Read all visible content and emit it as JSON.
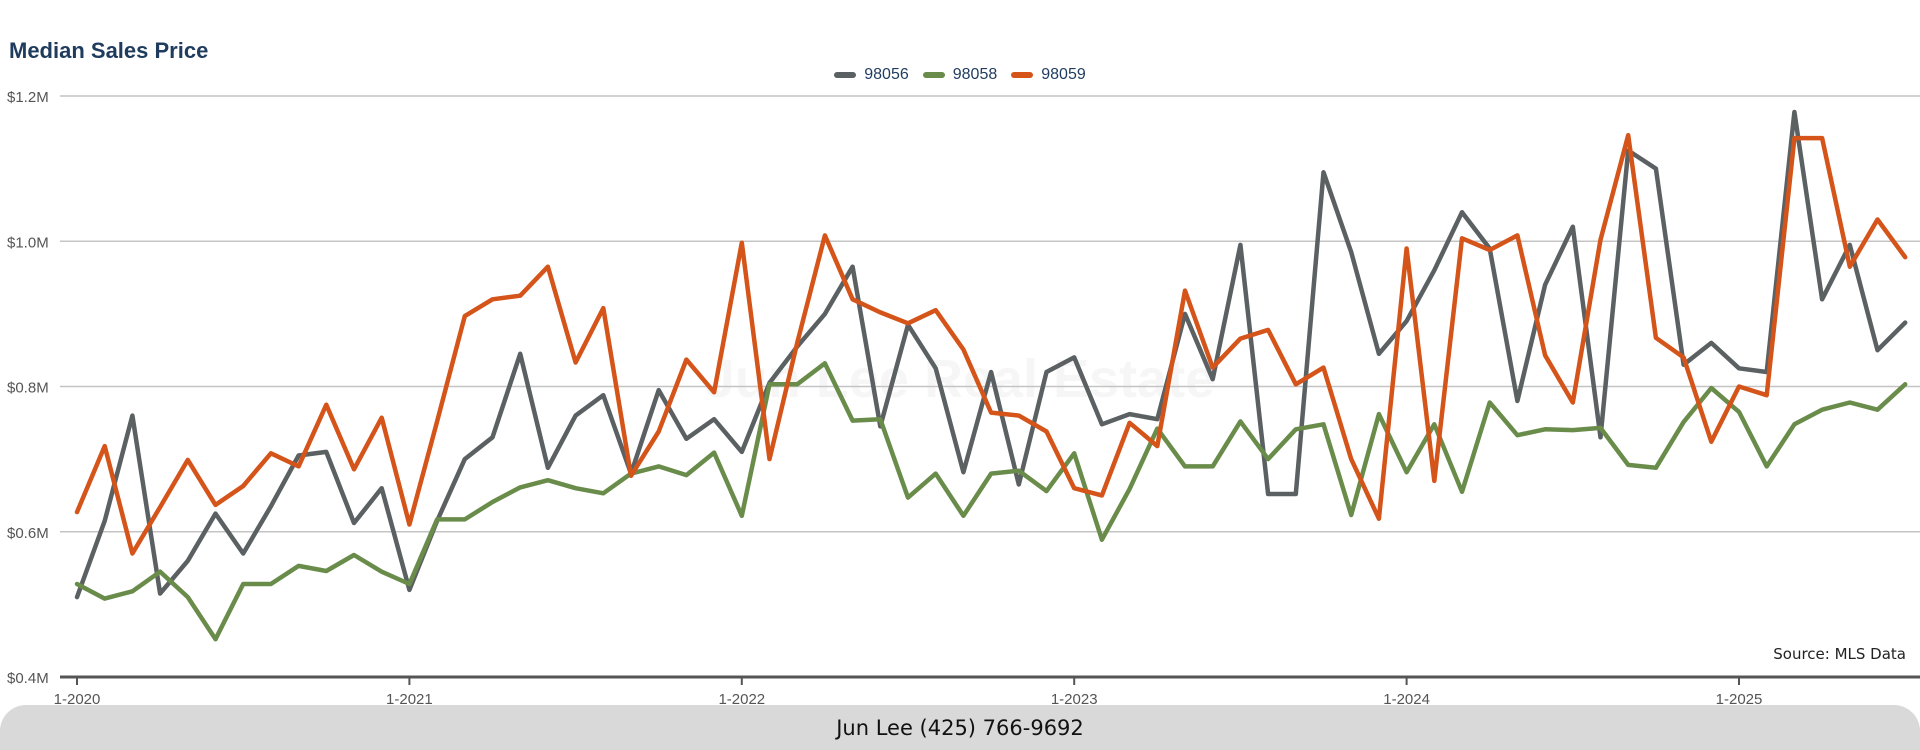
{
  "chart_data": {
    "type": "line",
    "title": "Median Sales Price",
    "xlabel": "",
    "ylabel": "",
    "ylim": [
      400000,
      1200000
    ],
    "yticks": [
      {
        "value": 400000,
        "label": "$0.4M"
      },
      {
        "value": 600000,
        "label": "$0.6M"
      },
      {
        "value": 800000,
        "label": "$0.8M"
      },
      {
        "value": 1000000,
        "label": "$1.0M"
      },
      {
        "value": 1200000,
        "label": "$1.2M"
      }
    ],
    "xticks": [
      "1-2020",
      "1-2021",
      "1-2022",
      "1-2023",
      "1-2024",
      "1-2025"
    ],
    "x_start": "1-2020",
    "x": [
      "1-2020",
      "2-2020",
      "3-2020",
      "4-2020",
      "5-2020",
      "6-2020",
      "7-2020",
      "8-2020",
      "9-2020",
      "10-2020",
      "11-2020",
      "12-2020",
      "1-2021",
      "2-2021",
      "3-2021",
      "4-2021",
      "5-2021",
      "6-2021",
      "7-2021",
      "8-2021",
      "9-2021",
      "10-2021",
      "11-2021",
      "12-2021",
      "1-2022",
      "2-2022",
      "3-2022",
      "4-2022",
      "5-2022",
      "6-2022",
      "7-2022",
      "8-2022",
      "9-2022",
      "10-2022",
      "11-2022",
      "12-2022",
      "1-2023",
      "2-2023",
      "3-2023",
      "4-2023",
      "5-2023",
      "6-2023",
      "7-2023",
      "8-2023",
      "9-2023",
      "10-2023",
      "11-2023",
      "12-2023",
      "1-2024",
      "2-2024",
      "3-2024",
      "4-2024",
      "5-2024",
      "6-2024",
      "7-2024",
      "8-2024",
      "9-2024",
      "10-2024",
      "11-2024",
      "12-2024",
      "1-2025",
      "2-2025",
      "3-2025",
      "4-2025",
      "5-2025",
      "6-2025",
      "7-2025"
    ],
    "grid": true,
    "legend_position": "top-center",
    "series": [
      {
        "name": "98056",
        "color": "#5b6063",
        "values": [
          510000,
          615000,
          760000,
          515000,
          560000,
          625000,
          570000,
          635000,
          705000,
          710000,
          612000,
          660000,
          520000,
          615000,
          700000,
          730000,
          845000,
          688000,
          760000,
          788000,
          680000,
          795000,
          728000,
          755000,
          710000,
          805000,
          855000,
          900000,
          965000,
          745000,
          885000,
          825000,
          682000,
          820000,
          665000,
          820000,
          840000,
          748000,
          762000,
          755000,
          900000,
          810000,
          995000,
          652000,
          652000,
          1095000,
          985000,
          845000,
          890000,
          960000,
          1040000,
          990000,
          780000,
          940000,
          1020000,
          730000,
          1125000,
          1100000,
          830000,
          860000,
          825000,
          820000,
          1178000,
          920000,
          995000,
          850000,
          888000
        ]
      },
      {
        "name": "98058",
        "color": "#6a8c4b",
        "values": [
          528000,
          508000,
          518000,
          545000,
          510000,
          452000,
          528000,
          528000,
          553000,
          546000,
          568000,
          545000,
          528000,
          617000,
          617000,
          641000,
          661000,
          671000,
          660000,
          653000,
          680000,
          690000,
          678000,
          709000,
          622000,
          803000,
          803000,
          832000,
          753000,
          755000,
          647000,
          680000,
          622000,
          680000,
          684000,
          656000,
          708000,
          589000,
          659000,
          742000,
          690000,
          690000,
          752000,
          700000,
          741000,
          748000,
          623000,
          762000,
          682000,
          748000,
          655000,
          778000,
          733000,
          741000,
          740000,
          743000,
          692000,
          688000,
          751000,
          798000,
          765000,
          690000,
          748000,
          768000,
          778000,
          768000,
          803000
        ]
      },
      {
        "name": "98059",
        "color": "#d4541a",
        "values": [
          627000,
          718000,
          570000,
          634000,
          699000,
          637000,
          663000,
          708000,
          690000,
          775000,
          686000,
          757000,
          610000,
          752000,
          897000,
          920000,
          925000,
          965000,
          833000,
          908000,
          677000,
          738000,
          837000,
          792000,
          998000,
          700000,
          860000,
          1008000,
          920000,
          902000,
          887000,
          905000,
          851000,
          764000,
          760000,
          738000,
          660000,
          650000,
          750000,
          718000,
          932000,
          826000,
          866000,
          878000,
          803000,
          826000,
          700000,
          618000,
          990000,
          670000,
          1004000,
          988000,
          1008000,
          843000,
          778000,
          1002000,
          1146000,
          867000,
          840000,
          724000,
          800000,
          788000,
          1142000,
          1142000,
          965000,
          1030000,
          978000
        ]
      }
    ],
    "source_note": "Source: MLS Data"
  },
  "watermark": "Jun Lee Real Estate",
  "footer": {
    "text": "Jun Lee (425) 766-9692"
  }
}
